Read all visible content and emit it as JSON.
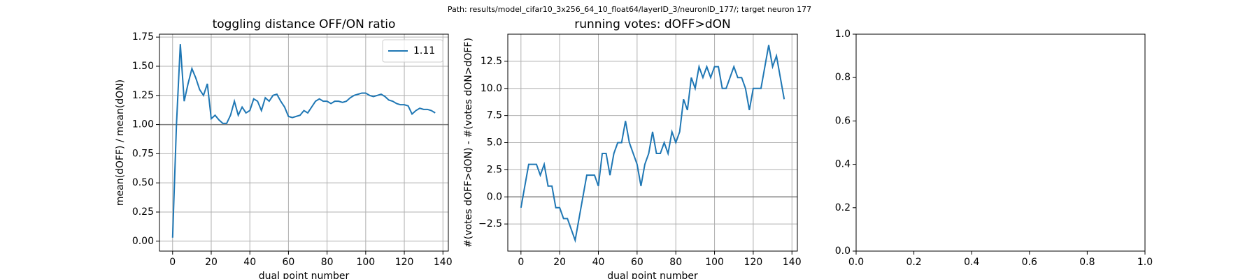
{
  "suptitle": "Path: results/model_cifar10_3x256_64_10_float64/layerID_3/neuronID_177/; target neuron 177",
  "chart_data": [
    {
      "type": "line",
      "title": "toggling distance OFF/ON ratio",
      "xlabel": "dual point number",
      "ylabel": "mean(dOFF) / mean(dON)",
      "x": [
        0,
        2,
        4,
        6,
        8,
        10,
        12,
        14,
        16,
        18,
        20,
        22,
        24,
        26,
        28,
        30,
        32,
        34,
        36,
        38,
        40,
        42,
        44,
        46,
        48,
        50,
        52,
        54,
        56,
        58,
        60,
        62,
        64,
        66,
        68,
        70,
        72,
        74,
        76,
        78,
        80,
        82,
        84,
        86,
        88,
        90,
        92,
        94,
        96,
        98,
        100,
        102,
        104,
        106,
        108,
        110,
        112,
        114,
        116,
        118,
        120,
        122,
        124,
        126,
        128,
        130,
        132,
        134,
        136
      ],
      "series": [
        {
          "name": "1.11",
          "color": "#1f77b4",
          "values": [
            0.03,
            1.0,
            1.69,
            1.2,
            1.35,
            1.48,
            1.4,
            1.3,
            1.25,
            1.35,
            1.05,
            1.08,
            1.04,
            1.01,
            1.01,
            1.08,
            1.2,
            1.08,
            1.15,
            1.1,
            1.12,
            1.22,
            1.2,
            1.12,
            1.23,
            1.2,
            1.25,
            1.26,
            1.2,
            1.15,
            1.07,
            1.06,
            1.07,
            1.08,
            1.12,
            1.1,
            1.15,
            1.2,
            1.22,
            1.2,
            1.2,
            1.18,
            1.2,
            1.2,
            1.19,
            1.2,
            1.23,
            1.25,
            1.26,
            1.27,
            1.27,
            1.25,
            1.24,
            1.25,
            1.26,
            1.24,
            1.21,
            1.2,
            1.18,
            1.17,
            1.17,
            1.16,
            1.09,
            1.12,
            1.14,
            1.13,
            1.13,
            1.12,
            1.1
          ]
        }
      ],
      "hline": 1.0,
      "hline_color": "#808080",
      "xlim": [
        -6.8,
        142.8
      ],
      "xticks": [
        0,
        20,
        40,
        60,
        80,
        100,
        120,
        140
      ],
      "ylim": [
        -0.085,
        1.775
      ],
      "yticks": [
        {
          "value": 0,
          "label": "0.00"
        },
        {
          "value": 0.25,
          "label": "0.25"
        },
        {
          "value": 0.5,
          "label": "0.50"
        },
        {
          "value": 0.75,
          "label": "0.75"
        },
        {
          "value": 1,
          "label": "1.00"
        },
        {
          "value": 1.25,
          "label": "1.25"
        },
        {
          "value": 1.5,
          "label": "1.50"
        },
        {
          "value": 1.75,
          "label": "1.75"
        }
      ],
      "grid": true,
      "legend": "upper right"
    },
    {
      "type": "line",
      "title": "running votes: dOFF>dON",
      "xlabel": "dual point number",
      "ylabel": "#(votes dOFF>dON) - #(votes dON>dOFF)",
      "x": [
        0,
        2,
        4,
        6,
        8,
        10,
        12,
        14,
        16,
        18,
        20,
        22,
        24,
        26,
        28,
        30,
        32,
        34,
        36,
        38,
        40,
        42,
        44,
        46,
        48,
        50,
        52,
        54,
        56,
        58,
        60,
        62,
        64,
        66,
        68,
        70,
        72,
        74,
        76,
        78,
        80,
        82,
        84,
        86,
        88,
        90,
        92,
        94,
        96,
        98,
        100,
        102,
        104,
        106,
        108,
        110,
        112,
        114,
        116,
        118,
        120,
        122,
        124,
        126,
        128,
        130,
        132,
        134,
        136
      ],
      "series": [
        {
          "color": "#1f77b4",
          "values": [
            -1,
            1,
            3,
            3,
            3,
            2,
            3,
            1,
            1,
            -1,
            -1,
            -2,
            -2,
            -3,
            -4,
            -2,
            0,
            2,
            2,
            2,
            1,
            4,
            4,
            2,
            4,
            5,
            5,
            7,
            5,
            4,
            3,
            1,
            3,
            4,
            6,
            4,
            4,
            5,
            4,
            6,
            5,
            6,
            9,
            8,
            11,
            10,
            12,
            11,
            12,
            11,
            12,
            12,
            10,
            10,
            11,
            12,
            11,
            11,
            10,
            8,
            10,
            10,
            10,
            12,
            14,
            12,
            13,
            11,
            9
          ]
        }
      ],
      "hline": 0,
      "hline_color": "#808080",
      "xlim": [
        -6.8,
        142.8
      ],
      "xticks": [
        0,
        20,
        40,
        60,
        80,
        100,
        120,
        140
      ],
      "ylim": [
        -5,
        15
      ],
      "yticks": [
        {
          "value": -2.5,
          "label": "−2.5"
        },
        {
          "value": 0,
          "label": "0.0"
        },
        {
          "value": 2.5,
          "label": "2.5"
        },
        {
          "value": 5,
          "label": "5.0"
        },
        {
          "value": 7.5,
          "label": "7.5"
        },
        {
          "value": 10,
          "label": "10.0"
        },
        {
          "value": 12.5,
          "label": "12.5"
        }
      ],
      "grid": true
    },
    {
      "type": "line",
      "xlim": [
        0,
        1
      ],
      "ylim": [
        0,
        1
      ],
      "xticks": [
        {
          "value": 0,
          "label": "0.0"
        },
        {
          "value": 0.2,
          "label": "0.2"
        },
        {
          "value": 0.4,
          "label": "0.4"
        },
        {
          "value": 0.6,
          "label": "0.6"
        },
        {
          "value": 0.8,
          "label": "0.8"
        },
        {
          "value": 1,
          "label": "1.0"
        }
      ],
      "yticks": [
        {
          "value": 0,
          "label": "0.0"
        },
        {
          "value": 0.2,
          "label": "0.2"
        },
        {
          "value": 0.4,
          "label": "0.4"
        },
        {
          "value": 0.6,
          "label": "0.6"
        },
        {
          "value": 0.8,
          "label": "0.8"
        },
        {
          "value": 1,
          "label": "1.0"
        }
      ],
      "grid": false
    }
  ]
}
